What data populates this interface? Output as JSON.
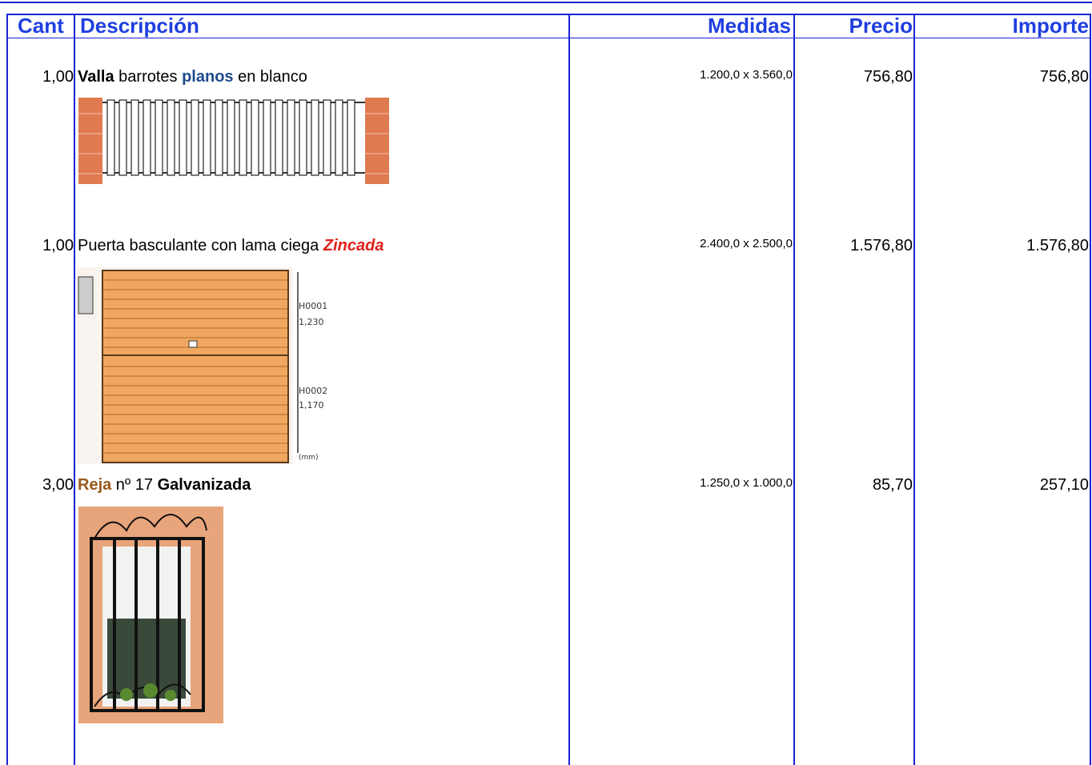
{
  "header": {
    "columns": [
      "Cant",
      "Descripción",
      "Medidas",
      "Precio",
      "Importe"
    ]
  },
  "rows": [
    {
      "cant": "1,00",
      "description": [
        {
          "text": "Valla",
          "style": "bold"
        },
        {
          "text": " barrotes ",
          "style": "normal"
        },
        {
          "text": "planos",
          "style": "bold-blue"
        },
        {
          "text": " en blanco",
          "style": "normal"
        }
      ],
      "medidas": "1.200,0 x 3.560,0",
      "precio": "756,80",
      "importe": "756,80"
    },
    {
      "cant": "1,00",
      "description": [
        {
          "text": "Puerta basculante con lama ciega ",
          "style": "normal"
        },
        {
          "text": "Zincada",
          "style": "italic-red"
        }
      ],
      "medidas": "2.400,0 x 2.500,0",
      "precio": "1.576,80",
      "importe": "1.576,80"
    },
    {
      "cant": "3,00",
      "description": [
        {
          "text": "Reja",
          "style": "bold-brown"
        },
        {
          "text": " nº 17 ",
          "style": "normal"
        },
        {
          "text": "Galvanizada",
          "style": "bold"
        }
      ],
      "medidas": "1.250,0 x 1.000,0",
      "precio": "85,70",
      "importe": "257,10"
    }
  ],
  "door_labels": [
    "H0001",
    "1,230",
    "H0002",
    "1,170",
    "(mm)"
  ]
}
